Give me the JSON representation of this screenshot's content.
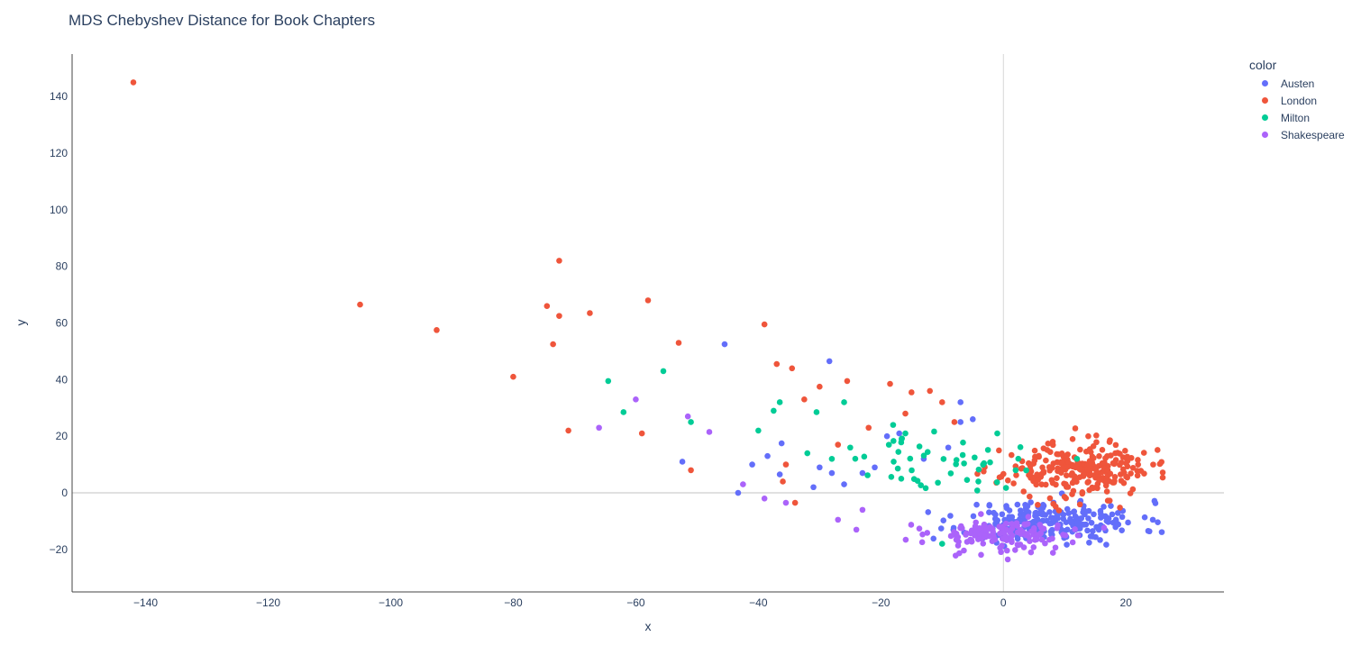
{
  "chart_data": {
    "type": "scatter",
    "title": "MDS Chebyshev Distance for Book Chapters",
    "xlabel": "x",
    "ylabel": "y",
    "xlim": [
      -152,
      36
    ],
    "ylim": [
      -35,
      155
    ],
    "xticks": [
      -140,
      -120,
      -100,
      -80,
      -60,
      -40,
      -20,
      0,
      20
    ],
    "yticks": [
      -20,
      0,
      20,
      40,
      60,
      80,
      100,
      120,
      140
    ],
    "legend_title": "color",
    "legend_position": "top-right",
    "series": [
      {
        "name": "Austen",
        "color": "#636efa",
        "cluster": {
          "center": [
            8,
            -10
          ],
          "spread": [
            12,
            6
          ],
          "count": 230,
          "seed": 11
        },
        "points": [
          [
            -45.5,
            52.5
          ],
          [
            -28.4,
            46.5
          ],
          [
            -52.4,
            11
          ],
          [
            -41,
            10
          ],
          [
            -38.5,
            13
          ],
          [
            -36.2,
            17.5
          ],
          [
            -43.3,
            0
          ],
          [
            -36.5,
            6.5
          ],
          [
            -31,
            2
          ],
          [
            -30,
            9
          ],
          [
            -28,
            7
          ],
          [
            -26,
            3
          ],
          [
            -23,
            7
          ],
          [
            -21,
            9
          ],
          [
            -19,
            20
          ],
          [
            -7,
            32
          ],
          [
            -7,
            25
          ],
          [
            -5,
            26
          ],
          [
            -17,
            21
          ],
          [
            -9,
            16
          ],
          [
            -13,
            12
          ]
        ]
      },
      {
        "name": "London",
        "color": "#ef553b",
        "cluster": {
          "center": [
            12,
            8
          ],
          "spread": [
            10,
            8
          ],
          "count": 250,
          "seed": 23
        },
        "points": [
          [
            -142,
            145
          ],
          [
            -72.5,
            82
          ],
          [
            -105,
            66.5
          ],
          [
            -92.5,
            57.5
          ],
          [
            -74.5,
            66
          ],
          [
            -72.5,
            62.5
          ],
          [
            -67.5,
            63.5
          ],
          [
            -58,
            68
          ],
          [
            -73.5,
            52.5
          ],
          [
            -53,
            53
          ],
          [
            -39,
            59.5
          ],
          [
            -80,
            41
          ],
          [
            -71,
            22
          ],
          [
            -59,
            21
          ],
          [
            -51,
            8
          ],
          [
            -37,
            45.5
          ],
          [
            -34.5,
            44
          ],
          [
            -25.5,
            39.5
          ],
          [
            -30,
            37.5
          ],
          [
            -32.5,
            33
          ],
          [
            -18.5,
            38.5
          ],
          [
            -15,
            35.5
          ],
          [
            -12,
            36
          ],
          [
            -10,
            32
          ],
          [
            -35.5,
            10
          ],
          [
            -36,
            4
          ],
          [
            -34,
            -3.5
          ],
          [
            -27,
            17
          ],
          [
            -22,
            23
          ],
          [
            -16,
            28
          ],
          [
            -8,
            25
          ]
        ]
      },
      {
        "name": "Milton",
        "color": "#00cc96",
        "cluster": {
          "center": [
            -10,
            10
          ],
          "spread": [
            10,
            8
          ],
          "count": 45,
          "seed": 37
        },
        "points": [
          [
            -64.5,
            39.5
          ],
          [
            -55.5,
            43
          ],
          [
            -62,
            28.5
          ],
          [
            -51,
            25
          ],
          [
            -40,
            22
          ],
          [
            -37.5,
            29
          ],
          [
            -36.5,
            32
          ],
          [
            -30.5,
            28.5
          ],
          [
            -26,
            32
          ],
          [
            -32,
            14
          ],
          [
            -28,
            12
          ],
          [
            -25,
            16
          ],
          [
            -18,
            24
          ],
          [
            -16,
            21
          ],
          [
            -10,
            -18
          ],
          [
            -1,
            21
          ],
          [
            2,
            8
          ],
          [
            12,
            12
          ]
        ]
      },
      {
        "name": "Shakespeare",
        "color": "#ab63fa",
        "cluster": {
          "center": [
            0,
            -15
          ],
          "spread": [
            10,
            5
          ],
          "count": 150,
          "seed": 53
        },
        "points": [
          [
            -60,
            33
          ],
          [
            -51.5,
            27
          ],
          [
            -48,
            21.5
          ],
          [
            -66,
            23
          ],
          [
            -42.5,
            3
          ],
          [
            -39,
            -2
          ],
          [
            -35.5,
            -3.5
          ],
          [
            -27,
            -9.5
          ],
          [
            -24,
            -13
          ],
          [
            -23,
            -6
          ]
        ]
      }
    ]
  }
}
